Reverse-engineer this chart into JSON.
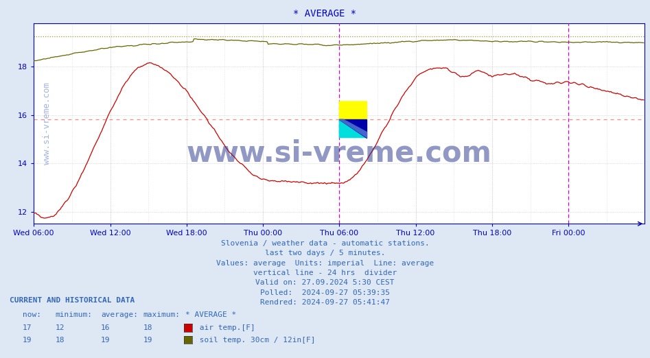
{
  "title": "* AVERAGE *",
  "title_color": "#0000cc",
  "title_fontsize": 10,
  "bg_color": "#dde8f4",
  "plot_bg_color": "#ffffff",
  "grid_color": "#cccccc",
  "yticks": [
    12,
    14,
    16,
    18
  ],
  "ylim": [
    11.5,
    19.8
  ],
  "tick_color": "#0000cc",
  "tick_fontsize": 8,
  "x_tick_labels": [
    "Wed 06:00",
    "Wed 12:00",
    "Wed 18:00",
    "Thu 00:00",
    "Thu 06:00",
    "Thu 12:00",
    "Thu 18:00",
    "Fri 00:00"
  ],
  "x_tick_positions": [
    0,
    72,
    144,
    216,
    288,
    360,
    432,
    504
  ],
  "air_temp_color": "#cc0000",
  "soil_temp_color": "#666600",
  "air_avg_value": 15.83,
  "soil_avg_value": 19.25,
  "air_avg_color": "#ff8888",
  "soil_avg_color": "#999933",
  "vline_positions": [
    288,
    504
  ],
  "vline_color": "#cc00cc",
  "watermark_text": "www.si-vreme.com",
  "watermark_color": "#3355bb",
  "watermark_alpha": 0.45,
  "watermark_fontsize": 9,
  "big_watermark_text": "www.si-vreme.com",
  "big_watermark_color": "#223388",
  "big_watermark_alpha": 0.5,
  "big_watermark_fontsize": 30,
  "info_lines": [
    "Slovenia / weather data - automatic stations.",
    "last two days / 5 minutes.",
    "Values: average  Units: imperial  Line: average",
    "vertical line - 24 hrs  divider",
    "Valid on: 27.09.2024 5:30 CEST",
    "Polled:  2024-09-27 05:39:35",
    "Rendred: 2024-09-27 05:41:47"
  ],
  "info_color": "#3366bb",
  "info_fontsize": 8,
  "legend_title": "CURRENT AND HISTORICAL DATA",
  "legend_headers": [
    "now:",
    "minimum:",
    "average:",
    "maximum:",
    "* AVERAGE *"
  ],
  "legend_air_vals": [
    "17",
    "12",
    "16",
    "18"
  ],
  "legend_air_label": "air temp.[F]",
  "legend_soil_vals": [
    "19",
    "18",
    "19",
    "19"
  ],
  "legend_soil_label": "soil temp. 30cm / 12in[F]",
  "footer_color": "#3366bb",
  "footer_fontsize": 8,
  "n_points": 576,
  "spine_color": "#0000aa"
}
